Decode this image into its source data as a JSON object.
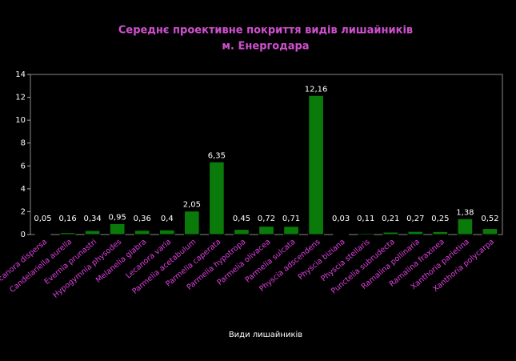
{
  "chart_data": {
    "type": "bar",
    "title": [
      "Середнє проективне покриття видів лишайників",
      "м. Енергодара"
    ],
    "x_label": "Види лишайників",
    "categories": [
      "Lecanora dispersa",
      "Candelariella aurella",
      "Evernia prunastri",
      "Hypogymnia physodes",
      "Melanelia glabra",
      "Lecanora varia",
      "Parmelia acetabulum",
      "Parmelia caperata",
      "Parmelia hypotropa",
      "Parmelia olivacea",
      "Parmelia sulcata",
      "Physcia adscendens",
      "Physcia biziana",
      "Physcia stellaris",
      "Punctelia subrudecta",
      "Ramalina pollinaria",
      "Ramalina fraxinea",
      "Xanthoria parietina",
      "Xanthoria polycarpa"
    ],
    "values": [
      0.05,
      0.16,
      0.34,
      0.95,
      0.36,
      0.4,
      2.05,
      6.35,
      0.45,
      0.72,
      0.71,
      12.16,
      0.03,
      0.11,
      0.21,
      0.27,
      0.25,
      1.38,
      0.52
    ],
    "value_labels": [
      "0,05",
      "0,16",
      "0,34",
      "0,95",
      "0,36",
      "0,4",
      "2,05",
      "6,35",
      "0,45",
      "0,72",
      "0,71",
      "12,16",
      "0,03",
      "0,11",
      "0,21",
      "0,27",
      "0,25",
      "1,38",
      "0,52"
    ],
    "color": "#0a7a0a",
    "ylim": [
      0,
      14
    ],
    "yticks": [
      0,
      2,
      4,
      6,
      8,
      10,
      12,
      14
    ],
    "grid": false
  }
}
